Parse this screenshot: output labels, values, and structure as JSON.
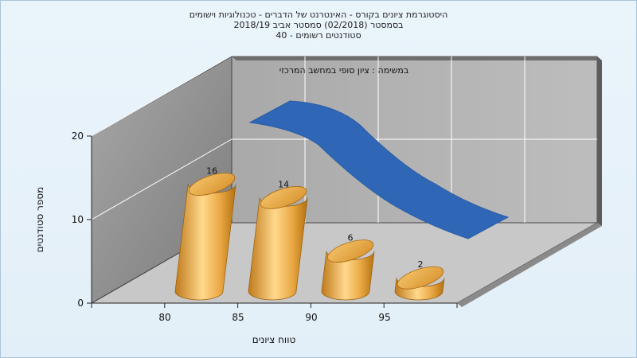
{
  "chart_data": {
    "type": "bar",
    "title": [
      "היסטוגרמת ציונים בקורס - האינטרנט של הדברים - טכנולוגיות וישומים",
      "בסמסטר  (02/2018)  סמסטר אביב 2018/19",
      "סטודנטים רשומים - 40"
    ],
    "xlabel": "טווח ציונים",
    "ylabel": "מספר סטודנטים",
    "categories": [
      "80",
      "85",
      "90",
      "95"
    ],
    "x_tick_labels": [
      "80",
      "85",
      "90",
      "95"
    ],
    "y_tick_labels": [
      "0",
      "10",
      "20"
    ],
    "ylim": [
      0,
      20
    ],
    "series": [
      {
        "type": "bar",
        "values": [
          16,
          14,
          6,
          2
        ],
        "color": "#e3a640"
      },
      {
        "type": "area",
        "name": "במשימה : ציון סופי במחשב המרכזי",
        "color": "#2f67b6"
      }
    ],
    "legend": "top-center",
    "grid": true,
    "three_d": true
  }
}
